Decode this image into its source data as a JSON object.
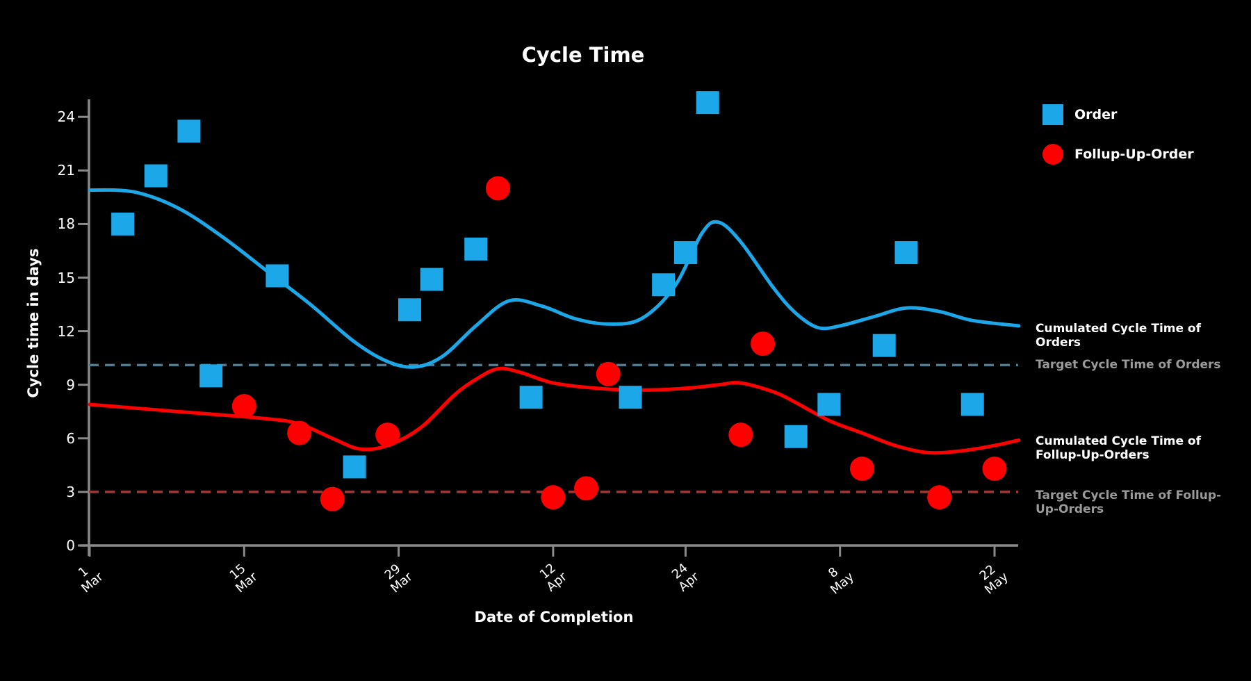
{
  "title": "Cycle Time",
  "y_axis": {
    "label": "Cycle time in days",
    "ticks": [
      0,
      3,
      6,
      9,
      12,
      15,
      18,
      21,
      24
    ]
  },
  "x_axis": {
    "label": "Date of Completion",
    "ticks": [
      {
        "day": "1",
        "month": "Mar",
        "offset": 0
      },
      {
        "day": "15",
        "month": "Mar",
        "offset": 14
      },
      {
        "day": "29",
        "month": "Mar",
        "offset": 28
      },
      {
        "day": "12",
        "month": "Apr",
        "offset": 42
      },
      {
        "day": "24",
        "month": "Apr",
        "offset": 54
      },
      {
        "day": "8",
        "month": "May",
        "offset": 68
      },
      {
        "day": "22",
        "month": "May",
        "offset": 82
      }
    ]
  },
  "legend": {
    "items": [
      {
        "label": "Order",
        "marker": "square"
      },
      {
        "label": "Follup-Up-Order",
        "marker": "circle"
      }
    ]
  },
  "annotations": {
    "cum_orders": "Cumulated Cycle Time of Orders",
    "target_orders": "Target Cycle Time of Orders",
    "cum_followups": "Cumulated Cycle Time of Follup-Up-Orders",
    "target_followups": "Target Cycle Time of Follup-Up-Orders"
  },
  "colors": {
    "order": "#1BA7E8",
    "followup": "#FF0000",
    "orders_target_line": "#527A8A",
    "followups_target_line": "#9E3939",
    "axis": "#8A8A8A",
    "target_text": "#9A9A9A",
    "text": "#FFFFFF",
    "background": "#000000"
  },
  "chart_data": {
    "type": "scatter",
    "title": "Cycle Time",
    "xlabel": "Date of Completion",
    "ylabel": "Cycle time in days",
    "ylim": [
      0,
      25.5
    ],
    "x_domain_days": [
      0,
      84.5
    ],
    "x_tick_days": [
      0,
      14,
      28,
      42,
      54,
      68,
      82
    ],
    "x_tick_labels": [
      "1 Mar",
      "15 Mar",
      "29 Mar",
      "12 Apr",
      "24 Apr",
      "8 May",
      "22 May"
    ],
    "grid": false,
    "legend_position": "top-right",
    "series": [
      {
        "name": "Order",
        "type": "scatter",
        "marker": "square",
        "points": [
          {
            "date": "4 Mar",
            "day": 3,
            "value": 18.0
          },
          {
            "date": "7 Mar",
            "day": 6,
            "value": 20.7
          },
          {
            "date": "10 Mar",
            "day": 9,
            "value": 23.2
          },
          {
            "date": "12 Mar",
            "day": 11,
            "value": 9.5
          },
          {
            "date": "18 Mar",
            "day": 17,
            "value": 15.1
          },
          {
            "date": "25 Mar",
            "day": 24,
            "value": 4.4
          },
          {
            "date": "30 Mar",
            "day": 29,
            "value": 13.2
          },
          {
            "date": "1 Apr",
            "day": 31,
            "value": 14.9
          },
          {
            "date": "5 Apr",
            "day": 35,
            "value": 16.6
          },
          {
            "date": "10 Apr",
            "day": 40,
            "value": 8.3
          },
          {
            "date": "19 Apr",
            "day": 49,
            "value": 8.3
          },
          {
            "date": "22 Apr",
            "day": 52,
            "value": 14.6
          },
          {
            "date": "24 Apr",
            "day": 54,
            "value": 16.4
          },
          {
            "date": "26 Apr",
            "day": 56,
            "value": 24.8
          },
          {
            "date": "4 May",
            "day": 64,
            "value": 6.1
          },
          {
            "date": "7 May",
            "day": 67,
            "value": 7.9
          },
          {
            "date": "12 May",
            "day": 72,
            "value": 11.2
          },
          {
            "date": "14 May",
            "day": 74,
            "value": 16.4
          },
          {
            "date": "20 May",
            "day": 80,
            "value": 7.9
          }
        ]
      },
      {
        "name": "Follup-Up-Order",
        "type": "scatter",
        "marker": "circle",
        "points": [
          {
            "date": "15 Mar",
            "day": 14,
            "value": 7.8
          },
          {
            "date": "20 Mar",
            "day": 19,
            "value": 6.3
          },
          {
            "date": "23 Mar",
            "day": 22,
            "value": 2.6
          },
          {
            "date": "28 Mar",
            "day": 27,
            "value": 6.2
          },
          {
            "date": "7 Apr",
            "day": 37,
            "value": 20.0
          },
          {
            "date": "12 Apr",
            "day": 42,
            "value": 2.7
          },
          {
            "date": "15 Apr",
            "day": 45,
            "value": 3.2
          },
          {
            "date": "17 Apr",
            "day": 47,
            "value": 9.6
          },
          {
            "date": "29 Apr",
            "day": 59,
            "value": 6.2
          },
          {
            "date": "1 May",
            "day": 61,
            "value": 11.3
          },
          {
            "date": "10 May",
            "day": 70,
            "value": 4.3
          },
          {
            "date": "17 May",
            "day": 77,
            "value": 2.7
          },
          {
            "date": "22 May",
            "day": 82,
            "value": 4.3
          }
        ]
      },
      {
        "name": "Cumulated Cycle Time of Orders",
        "type": "smooth-line",
        "points": [
          [
            0,
            19.9
          ],
          [
            4,
            19.8
          ],
          [
            8,
            18.9
          ],
          [
            12,
            17.3
          ],
          [
            16,
            15.4
          ],
          [
            20,
            13.5
          ],
          [
            24,
            11.4
          ],
          [
            27,
            10.3
          ],
          [
            29.5,
            10.0
          ],
          [
            32,
            10.6
          ],
          [
            35,
            12.3
          ],
          [
            38,
            13.7
          ],
          [
            41,
            13.4
          ],
          [
            44,
            12.7
          ],
          [
            47,
            12.4
          ],
          [
            50,
            12.7
          ],
          [
            53,
            14.5
          ],
          [
            55.5,
            17.5
          ],
          [
            57,
            18.1
          ],
          [
            59,
            17.0
          ],
          [
            62,
            14.4
          ],
          [
            64,
            13.0
          ],
          [
            66,
            12.2
          ],
          [
            68,
            12.3
          ],
          [
            71,
            12.8
          ],
          [
            74,
            13.3
          ],
          [
            77,
            13.1
          ],
          [
            80,
            12.6
          ],
          [
            84.2,
            12.3
          ]
        ]
      },
      {
        "name": "Cumulated Cycle Time of Follup-Up-Orders",
        "type": "smooth-line",
        "points": [
          [
            0,
            7.9
          ],
          [
            8,
            7.5
          ],
          [
            16,
            7.1
          ],
          [
            19,
            6.8
          ],
          [
            22,
            6.0
          ],
          [
            24.5,
            5.4
          ],
          [
            27,
            5.6
          ],
          [
            30,
            6.6
          ],
          [
            33,
            8.4
          ],
          [
            35,
            9.3
          ],
          [
            37,
            9.9
          ],
          [
            39,
            9.7
          ],
          [
            42,
            9.1
          ],
          [
            46,
            8.8
          ],
          [
            50,
            8.7
          ],
          [
            54,
            8.8
          ],
          [
            57,
            9.0
          ],
          [
            59,
            9.1
          ],
          [
            62,
            8.6
          ],
          [
            64,
            8.0
          ],
          [
            67,
            7.0
          ],
          [
            70,
            6.3
          ],
          [
            73,
            5.6
          ],
          [
            76,
            5.2
          ],
          [
            79,
            5.3
          ],
          [
            82,
            5.6
          ],
          [
            84.2,
            5.9
          ]
        ]
      },
      {
        "name": "Target Cycle Time of Orders",
        "type": "dashed-horizontal-line",
        "value": 10.1
      },
      {
        "name": "Target Cycle Time of Follup-Up-Orders",
        "type": "dashed-horizontal-line",
        "value": 3.0
      }
    ]
  }
}
